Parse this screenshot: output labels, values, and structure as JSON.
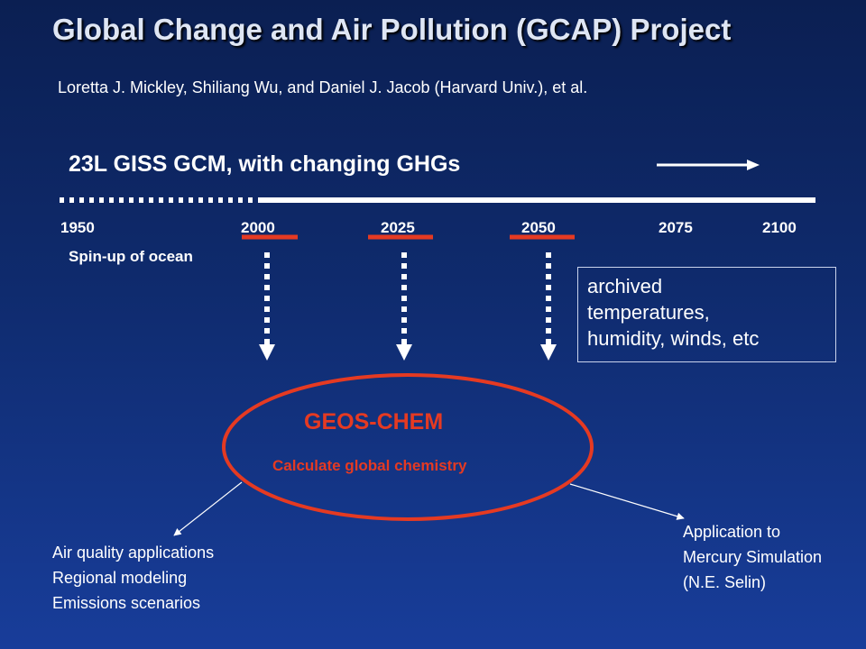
{
  "title": "Global Change and Air Pollution (GCAP) Project",
  "authors": "Loretta J. Mickley, Shiliang Wu, and Daniel J. Jacob (Harvard Univ.), et al.",
  "gcm_label": "23L GISS GCM, with changing GHGs",
  "years": [
    "1950",
    "2000",
    "2025",
    "2050",
    "2075",
    "2100"
  ],
  "spinup_label": "Spin-up of ocean",
  "archived_box": [
    "archived",
    "temperatures,",
    "humidity, winds, etc"
  ],
  "geos_chem": {
    "name": "GEOS-CHEM",
    "subtitle": "Calculate global chemistry"
  },
  "outputs": {
    "left": [
      "Air quality applications",
      "Regional modeling",
      "Emissions scenarios"
    ],
    "right": [
      "Application to",
      "Mercury Simulation",
      "(N.E. Selin)"
    ]
  },
  "colors": {
    "accent": "#e53a22",
    "text": "#ffffff",
    "background_top": "#0b1f52",
    "background_bottom": "#183d9a"
  }
}
